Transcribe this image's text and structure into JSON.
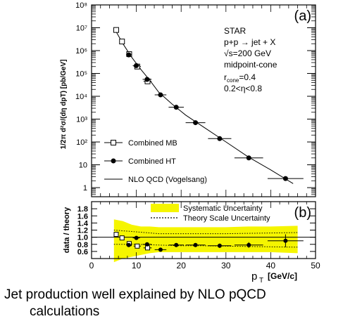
{
  "chart_data": [
    {
      "type": "scatter",
      "panel_label": "(a)",
      "ylabel": "1/2π d²σ/(dη dpT) [pb/GeV]",
      "yscale": "log",
      "ylim": [
        0.4,
        100000000
      ],
      "xlim": [
        0,
        50
      ],
      "y_tick_labels": [
        "1",
        "10",
        "10²",
        "10³",
        "10⁴",
        "10⁵",
        "10⁶",
        "10⁷",
        "10⁸"
      ],
      "annotation": [
        "STAR",
        "p+p → jet + X",
        "√s=200  GeV",
        "midpoint-cone",
        "r_cone=0.4",
        "0.2<η<0.8"
      ],
      "legend": [
        "Combined MB",
        "Combined HT",
        "NLO QCD (Vogelsang)"
      ],
      "legend_position": "bottom-left",
      "series": [
        {
          "name": "Combined MB",
          "marker": "open-square",
          "x": [
            5.5,
            6.8,
            8.4,
            10.2,
            12.5
          ],
          "y": [
            8000000,
            2500000,
            700000,
            200000,
            45000
          ],
          "xerr": [
            0.4,
            0.5,
            0.6,
            0.8,
            0.9
          ]
        },
        {
          "name": "Combined HT",
          "marker": "filled-circle",
          "x": [
            8.3,
            10.0,
            12.4,
            15.4,
            18.9,
            23.2,
            28.6,
            35.1,
            43.3
          ],
          "y": [
            650000,
            220000,
            55000,
            11500,
            3300,
            700,
            140,
            20,
            2.5
          ],
          "xerr": [
            0.6,
            0.8,
            1.0,
            1.3,
            1.7,
            2.2,
            2.6,
            3.2,
            4.0
          ]
        },
        {
          "name": "NLO QCD (Vogelsang)",
          "marker": "line",
          "x": [
            5,
            7,
            9,
            11,
            13,
            15,
            18,
            21,
            25,
            30,
            35,
            40,
            45
          ],
          "y": [
            10000000,
            2000000,
            500000,
            150000,
            50000,
            15000,
            4500,
            1500,
            450,
            100,
            22,
            6,
            1.5
          ]
        }
      ]
    },
    {
      "type": "scatter",
      "panel_label": "(b)",
      "ylabel": "data / theory",
      "xlabel_main": "p",
      "xlabel_sub": "T",
      "xlabel_unit": "[GeV/c]",
      "xlim": [
        0,
        50
      ],
      "ylim": [
        0.4,
        2.0
      ],
      "x_ticks": [
        0,
        10,
        20,
        30,
        40,
        50
      ],
      "y_ticks": [
        0.6,
        0.8,
        1.0,
        1.2,
        1.4,
        1.6,
        1.8
      ],
      "reference_line": 1.0,
      "legend": [
        "Systematic Uncertainty",
        "Theory Scale Uncertainty"
      ],
      "legend_position": "top-right",
      "systematic_band": {
        "x": [
          5,
          7,
          9,
          11,
          13,
          15,
          18,
          22,
          26,
          30,
          35,
          40,
          46
        ],
        "upper": [
          1.5,
          1.45,
          1.35,
          1.3,
          1.3,
          1.28,
          1.28,
          1.28,
          1.28,
          1.28,
          1.3,
          1.3,
          1.32
        ],
        "lower": [
          0.3,
          0.4,
          0.45,
          0.5,
          0.55,
          0.58,
          0.58,
          0.58,
          0.58,
          0.58,
          0.58,
          0.58,
          0.55
        ]
      },
      "theory_scale": {
        "x": [
          5,
          10,
          15,
          20,
          25,
          30,
          35,
          40,
          46
        ],
        "upper": [
          1.2,
          1.15,
          1.1,
          1.1,
          1.1,
          1.1,
          1.11,
          1.12,
          1.13
        ],
        "lower": [
          0.8,
          0.8,
          0.78,
          0.76,
          0.76,
          0.75,
          0.74,
          0.73,
          0.72
        ]
      },
      "series": [
        {
          "name": "Combined MB",
          "marker": "open-square",
          "x": [
            5.5,
            6.8,
            8.4,
            10.2,
            12.5
          ],
          "y": [
            1.08,
            0.98,
            0.82,
            0.75,
            0.7
          ],
          "xerr": [
            0.4,
            0.5,
            0.6,
            0.8,
            0.9
          ]
        },
        {
          "name": "Combined HT",
          "marker": "filled-circle",
          "x": [
            8.3,
            10.0,
            12.4,
            15.4,
            18.9,
            23.2,
            28.6,
            35.1,
            43.3
          ],
          "y": [
            0.78,
            0.98,
            0.8,
            0.65,
            0.78,
            0.78,
            0.76,
            0.78,
            0.9
          ],
          "xerr": [
            0.6,
            0.8,
            1.0,
            1.3,
            1.7,
            2.2,
            2.6,
            3.2,
            4.0
          ],
          "yerr": [
            0.05,
            0.05,
            0.05,
            0.05,
            0.05,
            0.05,
            0.06,
            0.08,
            0.18
          ]
        }
      ]
    }
  ],
  "caption": {
    "line1": "Jet production well explained by NLO pQCD",
    "line2": "calculations"
  },
  "colors": {
    "band": "#f5f500",
    "axis": "#000000",
    "text": "#000000"
  }
}
